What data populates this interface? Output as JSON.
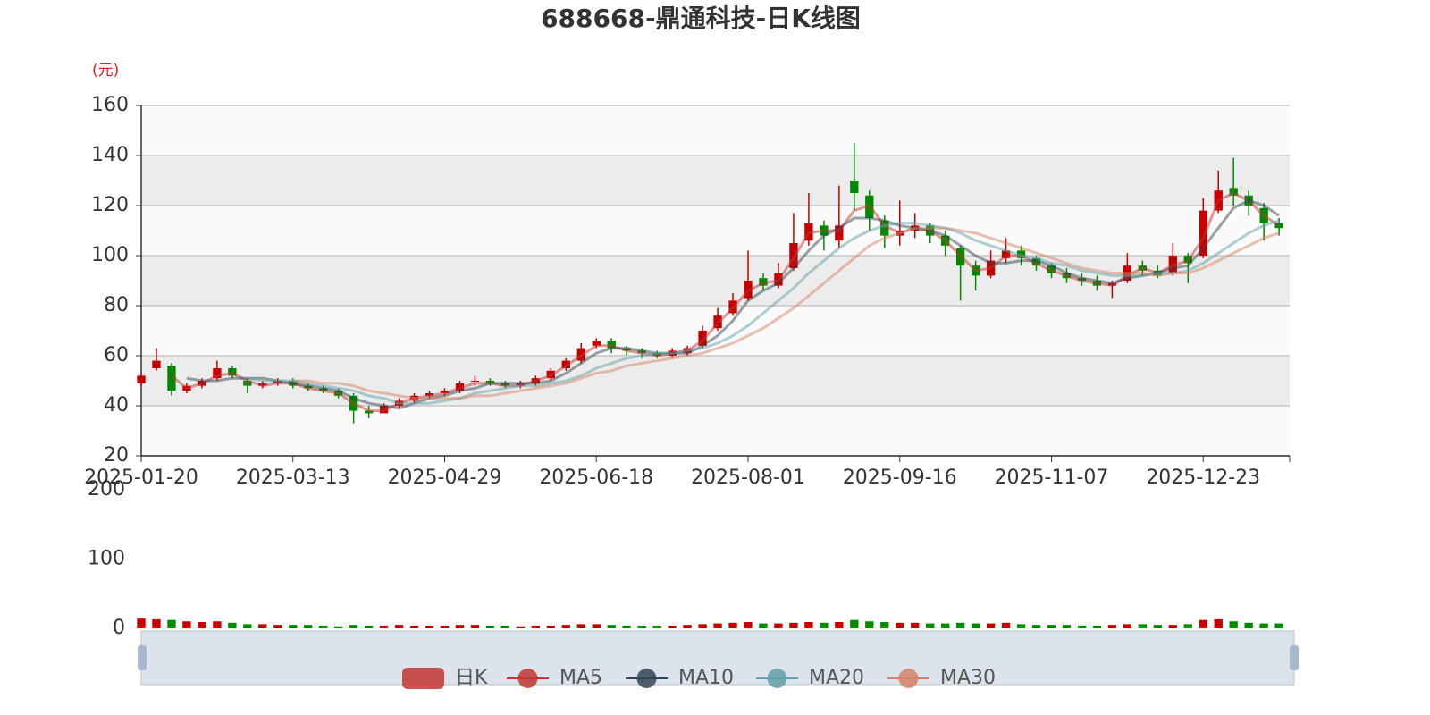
{
  "chart_data": {
    "type": "candlestick",
    "title": "688668-鼎通科技-日K线图",
    "y_unit": "(元)",
    "categories": [
      "2025-01-20",
      null,
      null,
      null,
      null,
      null,
      null,
      null,
      null,
      null,
      "2025-03-13",
      null,
      null,
      null,
      null,
      null,
      null,
      null,
      null,
      null,
      "2025-04-29",
      null,
      null,
      null,
      null,
      null,
      null,
      null,
      null,
      null,
      "2025-06-18",
      null,
      null,
      null,
      null,
      null,
      null,
      null,
      null,
      null,
      "2025-08-01",
      null,
      null,
      null,
      null,
      null,
      null,
      null,
      null,
      null,
      "2025-09-16",
      null,
      null,
      null,
      null,
      null,
      null,
      null,
      null,
      null,
      "2025-11-07",
      null,
      null,
      null,
      null,
      null,
      null,
      null,
      null,
      null,
      "2025-12-23",
      null,
      null,
      null,
      null,
      null
    ],
    "ylim": [
      20,
      160
    ],
    "yticks": [
      20,
      40,
      60,
      80,
      100,
      120,
      140,
      160
    ],
    "grid": true,
    "legend": "bottom",
    "series": [
      {
        "name": "日K",
        "type": "candlestick",
        "color": "#c23531",
        "up_color": "#c40000",
        "down_color": "#008a00",
        "values": [
          [
            49,
            52,
            48,
            53
          ],
          [
            55,
            58,
            54,
            63
          ],
          [
            56,
            46,
            44,
            57
          ],
          [
            46,
            48,
            45,
            49
          ],
          [
            48,
            50,
            47,
            51
          ],
          [
            51,
            55,
            50,
            58
          ],
          [
            55,
            52,
            51,
            56
          ],
          [
            50,
            48,
            45,
            51
          ],
          [
            48,
            49,
            47,
            50
          ],
          [
            49,
            50,
            48,
            51
          ],
          [
            50,
            48,
            47,
            51
          ],
          [
            48,
            47,
            46,
            49
          ],
          [
            47,
            46,
            45,
            48
          ],
          [
            46,
            44,
            43,
            47
          ],
          [
            44,
            38,
            33,
            45
          ],
          [
            38,
            37,
            35,
            40
          ],
          [
            37,
            40,
            37,
            41
          ],
          [
            40,
            42,
            39,
            43
          ],
          [
            42,
            44,
            41,
            45
          ],
          [
            44,
            45,
            43,
            46
          ],
          [
            45,
            46,
            44,
            47
          ],
          [
            46,
            49,
            45,
            50
          ],
          [
            50,
            50,
            48,
            52
          ],
          [
            50,
            49,
            48,
            51
          ],
          [
            49,
            48,
            47,
            50
          ],
          [
            48,
            49,
            47,
            50
          ],
          [
            49,
            51,
            48,
            52
          ],
          [
            51,
            54,
            50,
            55
          ],
          [
            55,
            58,
            54,
            59
          ],
          [
            58,
            63,
            57,
            65
          ],
          [
            64,
            66,
            63,
            67
          ],
          [
            66,
            63,
            61,
            67
          ],
          [
            63,
            62,
            60,
            64
          ],
          [
            62,
            61,
            59,
            63
          ],
          [
            61,
            60,
            59,
            62
          ],
          [
            60,
            62,
            59,
            63
          ],
          [
            61,
            63,
            60,
            64
          ],
          [
            64,
            70,
            63,
            72
          ],
          [
            71,
            76,
            70,
            79
          ],
          [
            77,
            82,
            76,
            85
          ],
          [
            83,
            90,
            82,
            102
          ],
          [
            91,
            88,
            86,
            93
          ],
          [
            88,
            93,
            87,
            97
          ],
          [
            95,
            105,
            94,
            117
          ],
          [
            106,
            113,
            104,
            125
          ],
          [
            112,
            108,
            102,
            114
          ],
          [
            106,
            112,
            103,
            128
          ],
          [
            130,
            125,
            118,
            145
          ],
          [
            124,
            115,
            110,
            126
          ],
          [
            114,
            108,
            103,
            116
          ],
          [
            108,
            110,
            104,
            122
          ],
          [
            110,
            112,
            107,
            117
          ],
          [
            112,
            108,
            105,
            113
          ],
          [
            108,
            104,
            100,
            110
          ],
          [
            103,
            96,
            82,
            104
          ],
          [
            96,
            92,
            86,
            98
          ],
          [
            92,
            98,
            91,
            102
          ],
          [
            99,
            102,
            97,
            107
          ],
          [
            102,
            99,
            96,
            104
          ],
          [
            99,
            96,
            94,
            100
          ],
          [
            96,
            93,
            91,
            97
          ],
          [
            93,
            91,
            89,
            95
          ],
          [
            91,
            90,
            88,
            93
          ],
          [
            90,
            88,
            86,
            92
          ],
          [
            88,
            89,
            83,
            90
          ],
          [
            90,
            96,
            89,
            101
          ],
          [
            96,
            94,
            92,
            98
          ],
          [
            94,
            92,
            91,
            96
          ],
          [
            93,
            100,
            92,
            105
          ],
          [
            100,
            97,
            89,
            101
          ],
          [
            100,
            118,
            99,
            123
          ],
          [
            118,
            126,
            117,
            134
          ],
          [
            127,
            124,
            120,
            139
          ],
          [
            124,
            120,
            116,
            126
          ],
          [
            119,
            113,
            106,
            121
          ],
          [
            113,
            111,
            108,
            115
          ]
        ]
      },
      {
        "name": "MA5",
        "type": "line",
        "color": "#c23531",
        "values": [
          null,
          null,
          52,
          47,
          49,
          52,
          53,
          50,
          48,
          49,
          49,
          47,
          46,
          45,
          41,
          38,
          38,
          41,
          43,
          44,
          45,
          47,
          49,
          49,
          48,
          48,
          50,
          52,
          56,
          60,
          64,
          64,
          62,
          61,
          60,
          61,
          62,
          66,
          73,
          79,
          86,
          89,
          90,
          99,
          109,
          110,
          110,
          118,
          120,
          112,
          109,
          111,
          110,
          106,
          100,
          94,
          95,
          100,
          100,
          97,
          94,
          92,
          90,
          89,
          88,
          92,
          95,
          93,
          96,
          98,
          107,
          122,
          125,
          122,
          116,
          112
        ]
      },
      {
        "name": "MA10",
        "type": "line",
        "color": "#2f4554",
        "values": [
          null,
          null,
          null,
          51,
          50,
          50,
          51,
          51,
          51,
          50,
          49,
          48,
          47,
          46,
          43,
          41,
          40,
          39,
          41,
          43,
          44,
          46,
          47,
          49,
          49,
          49,
          49,
          50,
          53,
          57,
          61,
          63,
          63,
          62,
          61,
          61,
          61,
          64,
          68,
          74,
          82,
          86,
          89,
          95,
          102,
          108,
          111,
          115,
          115,
          114,
          112,
          111,
          110,
          108,
          104,
          100,
          97,
          97,
          98,
          98,
          96,
          93,
          91,
          90,
          89,
          91,
          92,
          93,
          95,
          96,
          103,
          111,
          119,
          122,
          120,
          116
        ]
      },
      {
        "name": "MA20",
        "type": "line",
        "color": "#61a0a8",
        "values": [
          null,
          null,
          null,
          null,
          null,
          null,
          null,
          51,
          50,
          50,
          50,
          49,
          48,
          47,
          46,
          44,
          43,
          41,
          41,
          41,
          42,
          43,
          45,
          46,
          47,
          48,
          48,
          49,
          50,
          52,
          55,
          57,
          59,
          60,
          61,
          61,
          62,
          63,
          65,
          68,
          72,
          77,
          82,
          87,
          93,
          98,
          103,
          107,
          110,
          112,
          113,
          113,
          112,
          111,
          109,
          106,
          104,
          102,
          100,
          99,
          97,
          96,
          94,
          93,
          92,
          92,
          92,
          93,
          93,
          94,
          97,
          101,
          105,
          109,
          112,
          114
        ]
      },
      {
        "name": "MA30",
        "type": "line",
        "color": "#d48265",
        "values": [
          null,
          null,
          null,
          null,
          null,
          null,
          null,
          null,
          null,
          null,
          50,
          50,
          49,
          49,
          48,
          46,
          45,
          44,
          43,
          43,
          43,
          43,
          44,
          44,
          45,
          46,
          47,
          48,
          49,
          51,
          53,
          54,
          56,
          57,
          58,
          59,
          60,
          61,
          63,
          65,
          68,
          71,
          75,
          79,
          84,
          89,
          94,
          99,
          104,
          107,
          109,
          111,
          111,
          111,
          110,
          109,
          107,
          105,
          103,
          101,
          99,
          97,
          95,
          94,
          93,
          93,
          93,
          92,
          93,
          93,
          95,
          98,
          101,
          104,
          107,
          109
        ]
      }
    ],
    "volume": {
      "ylim": [
        0,
        200
      ],
      "yticks": [
        0,
        100,
        200
      ],
      "values": [
        14,
        13,
        12,
        10,
        9,
        10,
        8,
        6,
        6,
        5,
        5,
        5,
        4,
        3,
        5,
        4,
        4,
        5,
        4,
        4,
        4,
        5,
        5,
        4,
        4,
        3,
        4,
        4,
        5,
        6,
        6,
        5,
        4,
        4,
        4,
        4,
        5,
        6,
        7,
        8,
        9,
        7,
        7,
        8,
        9,
        8,
        9,
        12,
        10,
        9,
        8,
        8,
        7,
        7,
        8,
        7,
        7,
        8,
        6,
        5,
        5,
        5,
        4,
        4,
        5,
        6,
        6,
        5,
        5,
        6,
        12,
        13,
        10,
        8,
        7,
        7
      ]
    }
  }
}
